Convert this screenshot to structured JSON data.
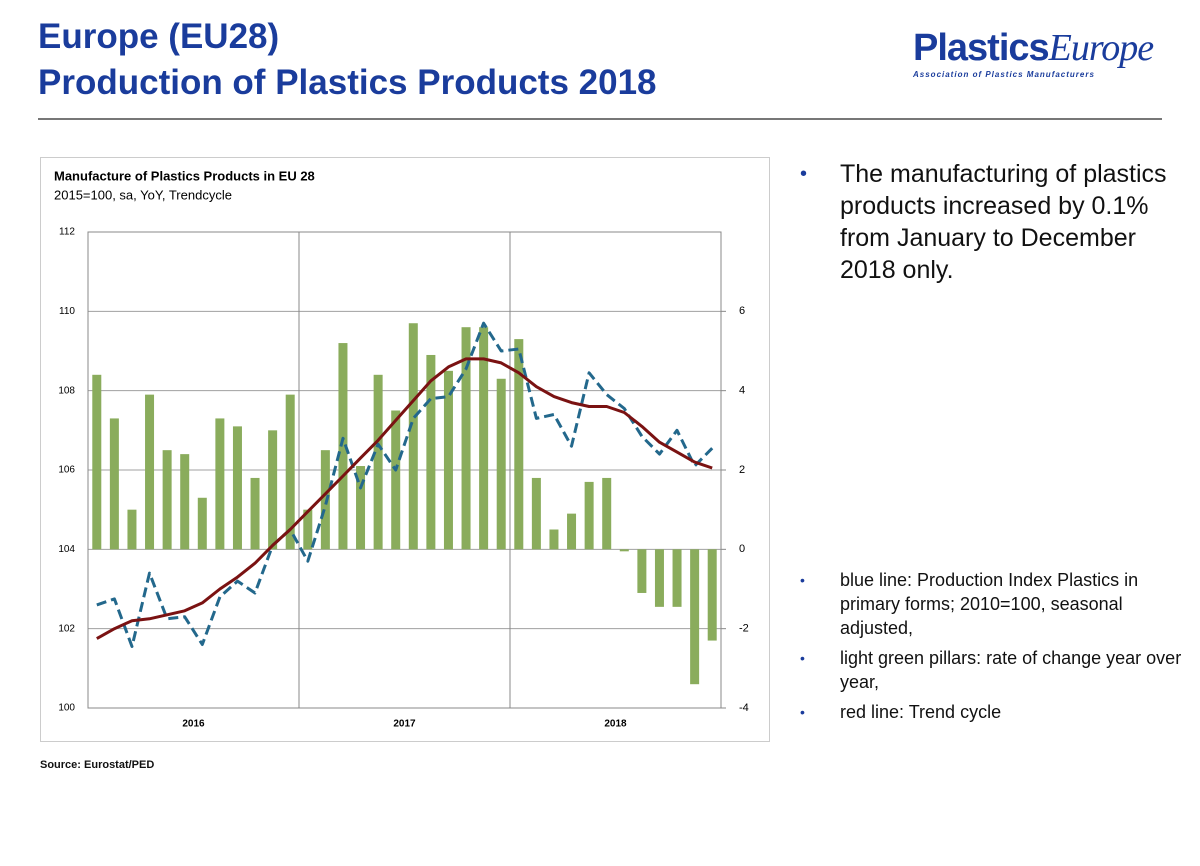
{
  "header": {
    "title_lines": [
      "Europe (EU28)",
      "Production of Plastics Products 2018"
    ],
    "logo": {
      "main_bold": "Plastics",
      "main_italic": "Europe",
      "sub": "Association of Plastics Manufacturers"
    }
  },
  "chart_data": {
    "type": "combo",
    "title": "Manufacture of Plastics Products in EU 28",
    "subtitle": "2015=100, sa, YoY, Trendcycle",
    "categories": [
      null,
      null,
      null,
      null,
      null,
      null,
      null,
      null,
      null,
      null,
      null,
      null,
      null,
      null,
      null,
      null,
      null,
      null,
      null,
      null,
      null,
      null,
      null,
      null,
      null,
      null,
      null,
      null,
      null,
      null,
      null,
      null,
      null,
      null,
      null,
      null
    ],
    "year_labels": [
      "2016",
      "2017",
      "2018"
    ],
    "ylim": [
      100,
      112
    ],
    "yticks": [
      100,
      102,
      104,
      106,
      108,
      110,
      112
    ],
    "y2lim": [
      -4,
      8
    ],
    "y2ticks": [
      -4,
      -2,
      0,
      2,
      4,
      6
    ],
    "grid": true,
    "series": [
      {
        "type": "bar",
        "axis": "y2",
        "color": "#8aac5c",
        "values": [
          4.4,
          3.3,
          1.0,
          3.9,
          2.5,
          2.4,
          1.3,
          3.3,
          3.1,
          1.8,
          3.0,
          3.9,
          1.0,
          2.5,
          5.2,
          2.1,
          4.4,
          3.5,
          5.7,
          4.9,
          4.5,
          5.6,
          5.6,
          4.3,
          5.3,
          1.8,
          0.5,
          0.9,
          1.7,
          1.8,
          -0.05,
          -1.1,
          -1.45,
          -1.45,
          -3.4,
          -2.3
        ]
      },
      {
        "type": "line",
        "axis": "y",
        "color": "#23688c",
        "dashed": true,
        "values": [
          102.6,
          102.75,
          101.55,
          103.4,
          102.25,
          102.3,
          101.6,
          102.8,
          103.2,
          102.9,
          104.1,
          104.5,
          103.7,
          105.1,
          106.8,
          105.55,
          106.65,
          106.0,
          107.3,
          107.8,
          107.85,
          108.55,
          109.7,
          109.0,
          109.05,
          107.3,
          107.4,
          106.6,
          108.45,
          107.9,
          107.55,
          106.85,
          106.4,
          107.0,
          106.1,
          106.55
        ]
      },
      {
        "type": "line",
        "axis": "y",
        "color": "#7a1212",
        "dashed": false,
        "values": [
          101.75,
          102.0,
          102.2,
          102.25,
          102.35,
          102.45,
          102.65,
          103.0,
          103.3,
          103.65,
          104.1,
          104.5,
          104.95,
          105.4,
          105.85,
          106.3,
          106.75,
          107.25,
          107.75,
          108.25,
          108.6,
          108.8,
          108.8,
          108.7,
          108.45,
          108.1,
          107.85,
          107.7,
          107.6,
          107.6,
          107.45,
          107.1,
          106.7,
          106.45,
          106.2,
          106.05
        ]
      }
    ],
    "source": "Source: Eurostat/PED"
  },
  "bullets": [
    "The manufacturing of plastics products increased by 0.1% from January to December 2018 only."
  ],
  "notes": [
    "blue line: Production Index Plastics in primary forms; 2010=100, seasonal adjusted,",
    "light green pillars: rate of change year over year,",
    "red line: Trend cycle"
  ]
}
